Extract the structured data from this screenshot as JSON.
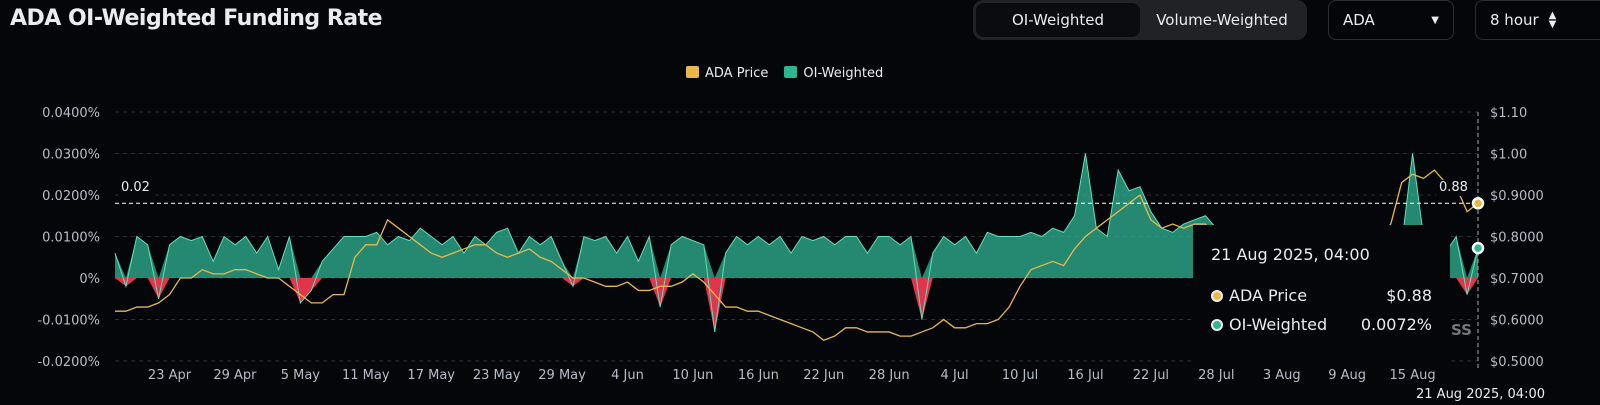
{
  "header": {
    "title": "ADA OI-Weighted Funding Rate",
    "tabs": [
      {
        "label": "OI-Weighted",
        "active": true
      },
      {
        "label": "Volume-Weighted",
        "active": false
      }
    ],
    "symbol": "ADA",
    "interval": "8 hour"
  },
  "colors": {
    "price": "#e8b84a",
    "funding_pos": "#2fb593",
    "funding_neg": "#e0354a",
    "background": "#05060a"
  },
  "tooltip": {
    "date": "21 Aug 2025, 04:00",
    "rows": [
      {
        "label": "ADA Price",
        "value": "$0.88"
      },
      {
        "label": "OI-Weighted",
        "value": "0.0072%"
      }
    ]
  },
  "crosshair": {
    "x_label": "21 Aug 2025, 04:00",
    "left_label": "0.02",
    "right_label": "0.88"
  },
  "watermark": "SS",
  "chart_data": {
    "type": "area+line",
    "legend": [
      "ADA Price",
      "OI-Weighted"
    ],
    "legend_placement": "top-center",
    "grid": true,
    "y_left": {
      "ticks": [
        "0.0400%",
        "0.0300%",
        "0.0200%",
        "0.0100%",
        "0%",
        "-0.0100%",
        "-0.0200%"
      ],
      "range": [
        -0.02,
        0.04
      ]
    },
    "y_right": {
      "ticks": [
        "$1.10",
        "$1.00",
        "$0.9000",
        "$0.8000",
        "$0.7000",
        "$0.6000",
        "$0.5000"
      ],
      "range": [
        0.5,
        1.1
      ]
    },
    "x_ticks": [
      "23 Apr",
      "29 Apr",
      "5 May",
      "11 May",
      "17 May",
      "23 May",
      "29 May",
      "4 Jun",
      "10 Jun",
      "16 Jun",
      "22 Jun",
      "28 Jun",
      "4 Jul",
      "10 Jul",
      "16 Jul",
      "22 Jul",
      "28 Jul",
      "3 Aug",
      "9 Aug",
      "15 Aug"
    ],
    "x_range": [
      "2025-04-18",
      "2025-08-21"
    ],
    "series": [
      {
        "name": "OI-Weighted",
        "unit": "%",
        "values": [
          0.006,
          -0.002,
          0.01,
          0.008,
          -0.005,
          0.008,
          0.01,
          0.009,
          0.01,
          0.004,
          0.01,
          0.008,
          0.01,
          0.006,
          0.01,
          0.002,
          0.01,
          -0.006,
          -0.003,
          0.004,
          0.007,
          0.01,
          0.01,
          0.01,
          0.011,
          0.008,
          0.01,
          0.009,
          0.012,
          0.01,
          0.008,
          0.01,
          0.006,
          0.01,
          0.008,
          0.011,
          0.012,
          0.006,
          0.01,
          0.008,
          0.01,
          0.004,
          -0.002,
          0.01,
          0.009,
          0.01,
          0.006,
          0.01,
          0.004,
          0.01,
          -0.007,
          0.008,
          0.01,
          0.009,
          0.008,
          -0.013,
          0.006,
          0.01,
          0.008,
          0.01,
          0.008,
          0.01,
          0.006,
          0.01,
          0.009,
          0.01,
          0.008,
          0.01,
          0.01,
          0.006,
          0.01,
          0.01,
          0.008,
          0.01,
          -0.01,
          0.006,
          0.01,
          0.008,
          0.01,
          0.006,
          0.011,
          0.01,
          0.01,
          0.01,
          0.011,
          0.01,
          0.012,
          0.011,
          0.015,
          0.03,
          0.012,
          0.01,
          0.026,
          0.021,
          0.022,
          0.016,
          0.012,
          0.011,
          0.013,
          0.014,
          0.015,
          0.012,
          0.01,
          0.008,
          0.006,
          0.008,
          0.005,
          0.006,
          0.008,
          0.005,
          0.007,
          0.01,
          0.006,
          0.008,
          0.01,
          0.006,
          0.008,
          0.012,
          0.008,
          0.03,
          0.01,
          0.008,
          0.006,
          0.01,
          -0.004,
          0.0072
        ]
      },
      {
        "name": "ADA Price",
        "unit": "$",
        "values": [
          0.62,
          0.62,
          0.63,
          0.63,
          0.64,
          0.66,
          0.7,
          0.7,
          0.72,
          0.71,
          0.71,
          0.72,
          0.72,
          0.71,
          0.7,
          0.7,
          0.68,
          0.66,
          0.64,
          0.64,
          0.66,
          0.66,
          0.75,
          0.78,
          0.78,
          0.84,
          0.82,
          0.8,
          0.78,
          0.76,
          0.75,
          0.76,
          0.77,
          0.78,
          0.78,
          0.76,
          0.75,
          0.76,
          0.77,
          0.75,
          0.74,
          0.72,
          0.7,
          0.7,
          0.69,
          0.68,
          0.68,
          0.69,
          0.67,
          0.67,
          0.68,
          0.68,
          0.69,
          0.71,
          0.69,
          0.66,
          0.63,
          0.63,
          0.62,
          0.62,
          0.61,
          0.6,
          0.59,
          0.58,
          0.57,
          0.55,
          0.56,
          0.58,
          0.58,
          0.57,
          0.57,
          0.57,
          0.56,
          0.56,
          0.57,
          0.58,
          0.6,
          0.58,
          0.58,
          0.59,
          0.59,
          0.6,
          0.63,
          0.68,
          0.72,
          0.73,
          0.74,
          0.73,
          0.77,
          0.8,
          0.82,
          0.84,
          0.86,
          0.88,
          0.9,
          0.84,
          0.82,
          0.83,
          0.82,
          0.83,
          0.83,
          0.8,
          0.78,
          0.77,
          0.74,
          0.73,
          0.74,
          0.73,
          0.74,
          0.74,
          0.76,
          0.78,
          0.8,
          0.79,
          0.8,
          0.78,
          0.8,
          0.83,
          0.93,
          0.95,
          0.94,
          0.96,
          0.93,
          0.92,
          0.86,
          0.88
        ]
      }
    ]
  }
}
